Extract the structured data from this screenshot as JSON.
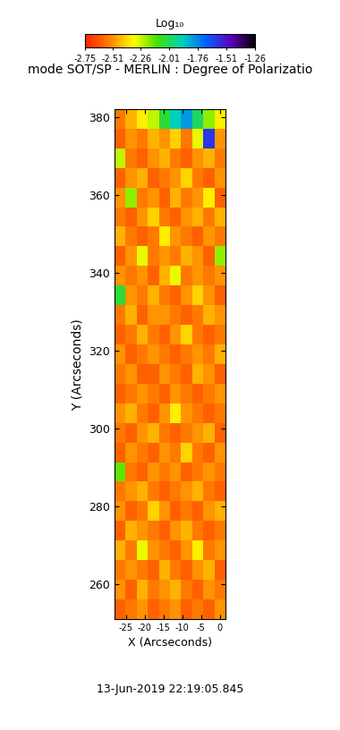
{
  "chart_data": {
    "type": "heatmap",
    "title": "mode SOT/SP - MERLIN : Degree of Polarizatio",
    "x_label": "X (Arcseconds)",
    "y_label": "Y (Arcseconds)",
    "footer": "13-Jun-2019 22:19:05.845",
    "colorbar_label": "Log₁₀",
    "xlim": [
      -28,
      1.5
    ],
    "ylim": [
      251,
      382
    ],
    "xticks": [
      -25,
      -20,
      -15,
      -10,
      -5,
      0
    ],
    "yticks": [
      260,
      280,
      300,
      320,
      340,
      360,
      380
    ],
    "colorbar_range": [
      -2.75,
      -1.26
    ],
    "colorbar_ticks": [
      -2.75,
      -2.51,
      -2.26,
      -2.01,
      -1.76,
      -1.51,
      -1.26
    ],
    "cells": [
      [
        -2.55,
        -2.45,
        -2.35,
        -2.25,
        -2.05,
        -1.9,
        -1.8,
        -2.0,
        -2.2,
        -2.35
      ],
      [
        -2.6,
        -2.5,
        -2.55,
        -2.45,
        -2.5,
        -2.4,
        -2.55,
        -2.3,
        -1.6,
        -2.5
      ],
      [
        -2.25,
        -2.55,
        -2.6,
        -2.5,
        -2.45,
        -2.55,
        -2.6,
        -2.5,
        -2.45,
        -2.55
      ],
      [
        -2.6,
        -2.5,
        -2.45,
        -2.6,
        -2.55,
        -2.5,
        -2.4,
        -2.55,
        -2.6,
        -2.5
      ],
      [
        -2.5,
        -2.2,
        -2.55,
        -2.5,
        -2.6,
        -2.45,
        -2.55,
        -2.5,
        -2.35,
        -2.6
      ],
      [
        -2.55,
        -2.6,
        -2.5,
        -2.4,
        -2.55,
        -2.6,
        -2.5,
        -2.45,
        -2.55,
        -2.45
      ],
      [
        -2.45,
        -2.55,
        -2.6,
        -2.55,
        -2.35,
        -2.5,
        -2.55,
        -2.6,
        -2.5,
        -2.55
      ],
      [
        -2.6,
        -2.5,
        -2.3,
        -2.55,
        -2.5,
        -2.55,
        -2.45,
        -2.5,
        -2.6,
        -2.2
      ],
      [
        -2.5,
        -2.55,
        -2.5,
        -2.6,
        -2.45,
        -2.3,
        -2.55,
        -2.5,
        -2.55,
        -2.5
      ],
      [
        -2.05,
        -2.5,
        -2.55,
        -2.45,
        -2.55,
        -2.6,
        -2.5,
        -2.4,
        -2.5,
        -2.6
      ],
      [
        -2.55,
        -2.45,
        -2.6,
        -2.5,
        -2.5,
        -2.55,
        -2.6,
        -2.55,
        -2.45,
        -2.5
      ],
      [
        -2.6,
        -2.55,
        -2.45,
        -2.55,
        -2.6,
        -2.5,
        -2.4,
        -2.55,
        -2.6,
        -2.55
      ],
      [
        -2.5,
        -2.6,
        -2.55,
        -2.5,
        -2.55,
        -2.6,
        -2.55,
        -2.5,
        -2.55,
        -2.45
      ],
      [
        -2.55,
        -2.5,
        -2.6,
        -2.6,
        -2.5,
        -2.55,
        -2.6,
        -2.45,
        -2.5,
        -2.6
      ],
      [
        -2.6,
        -2.55,
        -2.5,
        -2.55,
        -2.6,
        -2.5,
        -2.55,
        -2.6,
        -2.55,
        -2.5
      ],
      [
        -2.5,
        -2.45,
        -2.55,
        -2.6,
        -2.5,
        -2.35,
        -2.5,
        -2.55,
        -2.6,
        -2.55
      ],
      [
        -2.55,
        -2.6,
        -2.5,
        -2.45,
        -2.55,
        -2.6,
        -2.55,
        -2.5,
        -2.45,
        -2.6
      ],
      [
        -2.6,
        -2.5,
        -2.55,
        -2.6,
        -2.5,
        -2.55,
        -2.4,
        -2.55,
        -2.6,
        -2.5
      ],
      [
        -2.15,
        -2.55,
        -2.6,
        -2.5,
        -2.55,
        -2.5,
        -2.6,
        -2.55,
        -2.5,
        -2.55
      ],
      [
        -2.55,
        -2.5,
        -2.45,
        -2.55,
        -2.6,
        -2.55,
        -2.5,
        -2.45,
        -2.55,
        -2.6
      ],
      [
        -2.5,
        -2.6,
        -2.55,
        -2.4,
        -2.5,
        -2.6,
        -2.55,
        -2.6,
        -2.5,
        -2.45
      ],
      [
        -2.6,
        -2.45,
        -2.5,
        -2.55,
        -2.6,
        -2.5,
        -2.45,
        -2.55,
        -2.6,
        -2.55
      ],
      [
        -2.45,
        -2.55,
        -2.3,
        -2.5,
        -2.55,
        -2.6,
        -2.5,
        -2.35,
        -2.55,
        -2.5
      ],
      [
        -2.55,
        -2.5,
        -2.55,
        -2.6,
        -2.45,
        -2.55,
        -2.6,
        -2.5,
        -2.45,
        -2.6
      ],
      [
        -2.5,
        -2.6,
        -2.45,
        -2.55,
        -2.5,
        -2.45,
        -2.55,
        -2.6,
        -2.5,
        -2.55
      ],
      [
        -2.6,
        -2.55,
        -2.5,
        -2.6,
        -2.55,
        -2.5,
        -2.6,
        -2.55,
        -2.6,
        -2.5
      ]
    ]
  }
}
